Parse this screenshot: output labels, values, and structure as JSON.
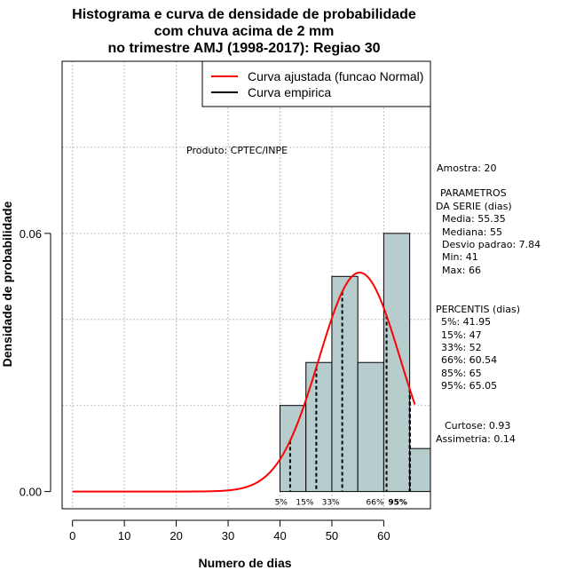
{
  "chart_data": {
    "type": "bar",
    "title_lines": [
      "Histograma e curva de densidade de probabilidade",
      "com chuva acima de 2 mm",
      "no trimestre AMJ (1998-2017): Regiao 30"
    ],
    "xlabel": "Numero de dias",
    "ylabel": "Densidade de probabilidade",
    "xlim": [
      -2,
      69
    ],
    "ylim": [
      -0.004,
      0.1
    ],
    "x_ticks": [
      "0",
      "10",
      "20",
      "30",
      "40",
      "50",
      "60"
    ],
    "y_ticks": [
      "0.00",
      "0.06"
    ],
    "histogram": {
      "bin_edges": [
        40,
        45,
        50,
        55,
        60,
        65,
        70
      ],
      "densities": [
        0.02,
        0.03,
        0.05,
        0.03,
        0.06,
        0.01
      ],
      "fill_color": "#b7cdcd"
    },
    "fitted_curve": {
      "type": "normal",
      "mean": 55.35,
      "sd": 7.84,
      "x_range": [
        0,
        66
      ],
      "color": "#ff0000"
    },
    "percentile_lines": [
      {
        "label": "5%",
        "value": 41.95
      },
      {
        "label": "15%",
        "value": 47
      },
      {
        "label": "33%",
        "value": 52
      },
      {
        "label": "66%",
        "value": 60.54
      },
      {
        "label": "85%",
        "value": 65
      },
      {
        "label": "95%",
        "value": 65.05
      }
    ],
    "grid": true,
    "legend": {
      "placement": "top-right",
      "entries": [
        {
          "label": "Curva ajustada (funcao Normal)",
          "color": "#ff0000"
        },
        {
          "label": "Curva empirica",
          "color": "#000000"
        }
      ]
    }
  },
  "annotation": "Produto: CPTEC/INPE",
  "side_panel": {
    "amostra": "Amostra: 20",
    "param_title_1": "PARAMETROS",
    "param_title_2": "DA SERIE (dias)",
    "params": [
      "Media: 55.35",
      "Mediana: 55",
      "Desvio padrao: 7.84",
      "Min: 41",
      "Max: 66"
    ],
    "percentis_title": "PERCENTIS (dias)",
    "percentis": [
      "5%: 41.95",
      "15%: 47",
      "33%: 52",
      "66%: 60.54",
      "85%: 65",
      "95%: 65.05"
    ],
    "curtose": "Curtose: 0.93",
    "assimetria": "Assimetria: 0.14"
  }
}
